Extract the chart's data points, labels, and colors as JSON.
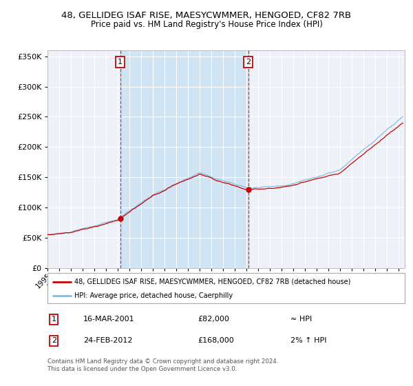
{
  "title1": "48, GELLIDEG ISAF RISE, MAESYCWMMER, HENGOED, CF82 7RB",
  "title2": "Price paid vs. HM Land Registry's House Price Index (HPI)",
  "legend_line1": "48, GELLIDEG ISAF RISE, MAESYCWMMER, HENGOED, CF82 7RB (detached house)",
  "legend_line2": "HPI: Average price, detached house, Caerphilly",
  "annotation1_date": "16-MAR-2001",
  "annotation1_price": "£82,000",
  "annotation1_hpi": "≈ HPI",
  "annotation2_date": "24-FEB-2012",
  "annotation2_price": "£168,000",
  "annotation2_hpi": "2% ↑ HPI",
  "footnote": "Contains HM Land Registry data © Crown copyright and database right 2024.\nThis data is licensed under the Open Government Licence v3.0.",
  "sale1_year": 2001.21,
  "sale1_price": 82000,
  "sale2_year": 2012.15,
  "sale2_price": 168000,
  "vline1_year": 2001.21,
  "vline2_year": 2012.15,
  "shade_start": 2001.21,
  "shade_end": 2012.15,
  "xmin": 1995,
  "xmax": 2025.5,
  "ymin": 0,
  "ymax": 360000,
  "yticks": [
    0,
    50000,
    100000,
    150000,
    200000,
    250000,
    300000,
    350000
  ],
  "background_color": "#ffffff",
  "plot_bg_color": "#eef2f8",
  "shade_color": "#d0e4f4",
  "grid_color": "#ffffff",
  "red_color": "#cc0000",
  "blue_color": "#88bbdd",
  "vline_color": "#cc3333"
}
